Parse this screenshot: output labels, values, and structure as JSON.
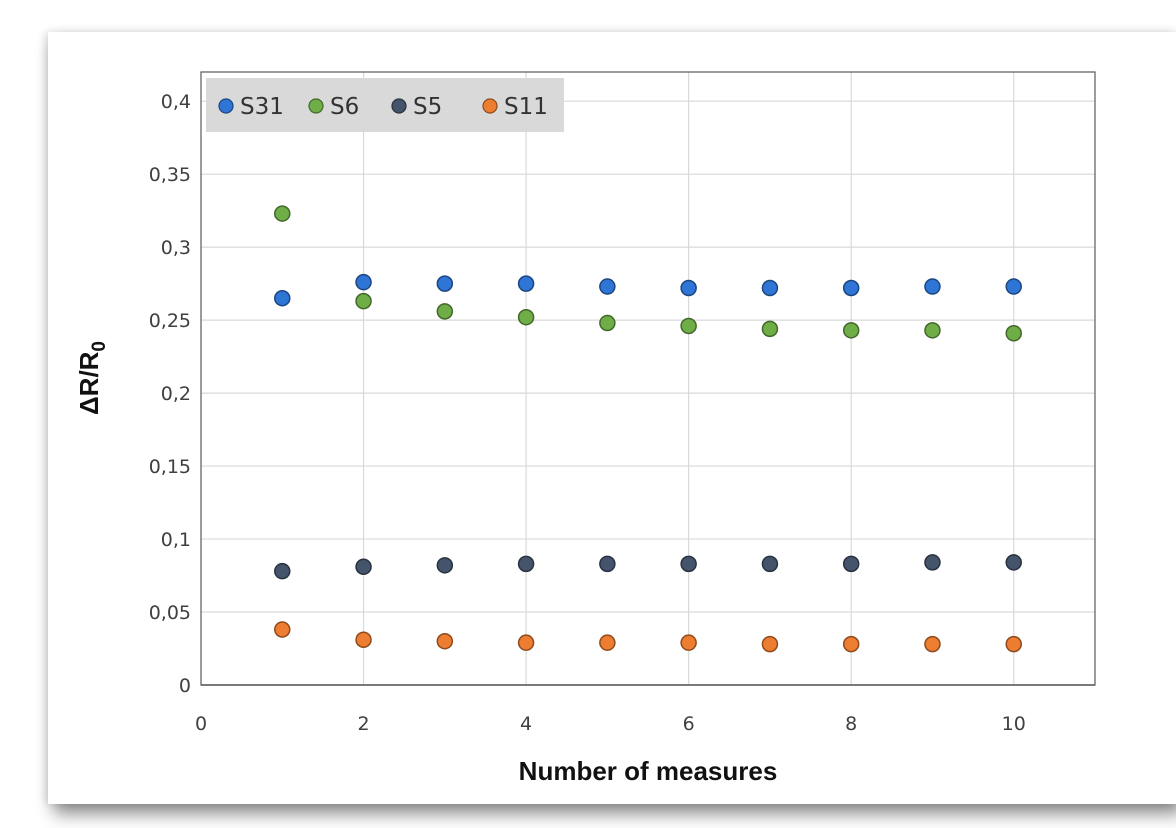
{
  "chart_data": {
    "type": "scatter",
    "title": "",
    "xlabel": "Number of measures",
    "ylabel": "ΔR/R",
    "ylabel_subscript": "0",
    "xlim": [
      0,
      11
    ],
    "ylim": [
      0,
      0.42
    ],
    "x_ticks": [
      0,
      2,
      4,
      6,
      8,
      10
    ],
    "x_tick_labels": [
      "0",
      "2",
      "4",
      "6",
      "8",
      "10"
    ],
    "y_ticks": [
      0,
      0.05,
      0.1,
      0.15,
      0.2,
      0.25,
      0.3,
      0.35,
      0.4
    ],
    "y_tick_labels": [
      "0",
      "0,05",
      "0,1",
      "0,15",
      "0,2",
      "0,25",
      "0,3",
      "0,35",
      "0,4"
    ],
    "grid": true,
    "legend_position": "top-left",
    "x": [
      1,
      2,
      3,
      4,
      5,
      6,
      7,
      8,
      9,
      10
    ],
    "series": [
      {
        "name": "S31",
        "color": "#2E75D6",
        "values": [
          0.265,
          0.276,
          0.275,
          0.275,
          0.273,
          0.272,
          0.272,
          0.272,
          0.273,
          0.273
        ]
      },
      {
        "name": "S6",
        "color": "#6FAD47",
        "values": [
          0.323,
          0.263,
          0.256,
          0.252,
          0.248,
          0.246,
          0.244,
          0.243,
          0.243,
          0.241
        ]
      },
      {
        "name": "S5",
        "color": "#44546A",
        "values": [
          0.078,
          0.081,
          0.082,
          0.083,
          0.083,
          0.083,
          0.083,
          0.083,
          0.084,
          0.084
        ]
      },
      {
        "name": "S11",
        "color": "#ED7D31",
        "values": [
          0.038,
          0.031,
          0.03,
          0.029,
          0.029,
          0.029,
          0.028,
          0.028,
          0.028,
          0.028
        ]
      }
    ]
  }
}
